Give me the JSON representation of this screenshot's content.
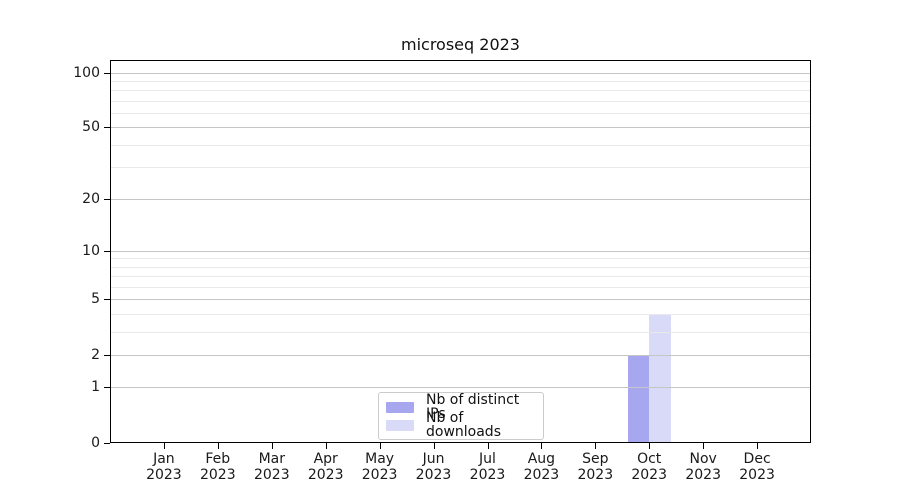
{
  "chart_data": {
    "type": "bar",
    "title": "microseq 2023",
    "categories": [
      "Jan 2023",
      "Feb 2023",
      "Mar 2023",
      "Apr 2023",
      "May 2023",
      "Jun 2023",
      "Jul 2023",
      "Aug 2023",
      "Sep 2023",
      "Oct 2023",
      "Nov 2023",
      "Dec 2023"
    ],
    "series": [
      {
        "name": "Nb of distinct IPs",
        "color": "#a7a7f0",
        "values": [
          0,
          0,
          0,
          0,
          0,
          0,
          0,
          0,
          0,
          2,
          0,
          0
        ]
      },
      {
        "name": "Nb of downloads",
        "color": "#d9d9f8",
        "values": [
          0,
          0,
          0,
          0,
          0,
          0,
          0,
          0,
          0,
          4,
          0,
          0
        ]
      }
    ],
    "xlabel": "",
    "ylabel": "",
    "yscale": "log1p",
    "ylim": [
      0,
      117
    ],
    "yticks": [
      0,
      1,
      2,
      5,
      10,
      20,
      50,
      100
    ],
    "minor_gridlines": [
      3,
      4,
      6,
      7,
      8,
      9,
      30,
      40,
      60,
      70,
      80,
      90
    ],
    "grid": "horizontal",
    "grid_over_bars": true,
    "legend_position": "lower center"
  },
  "colors": {
    "axis": "#000000",
    "text": "#1a1a1a",
    "grid_major": "#c6c6c6",
    "grid_minor": "#e9e9e9",
    "background": "#ffffff"
  }
}
